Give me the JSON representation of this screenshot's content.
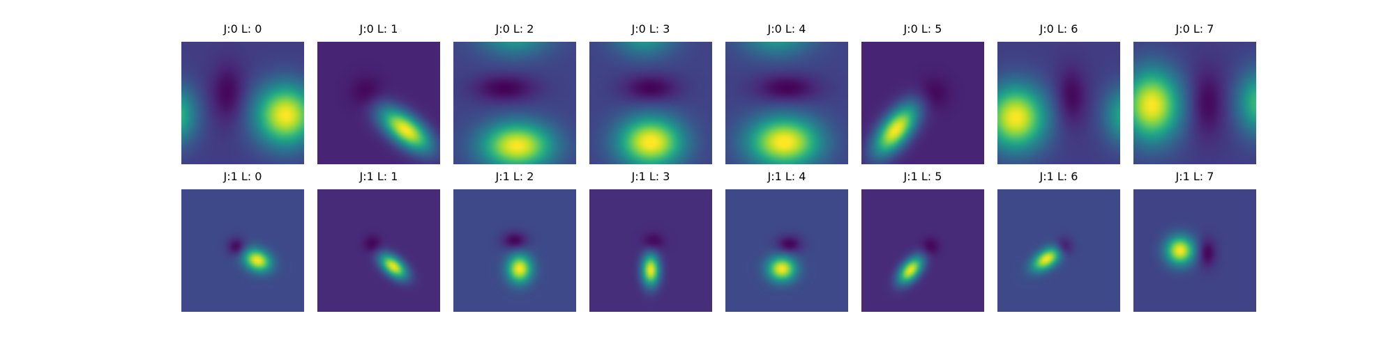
{
  "chart_data": {
    "type": "heatmap",
    "colormap": "viridis",
    "grid": false,
    "axes": "off",
    "rows": [
      {
        "panels": [
          {
            "title": "J:0 L: 0",
            "background": 0.18,
            "blobs": [
              {
                "cx": 0.85,
                "cy": 0.6,
                "sx": 0.17,
                "sy": 0.17,
                "rot": 0,
                "amp": 0.82
              },
              {
                "cx": -0.05,
                "cy": 0.6,
                "sx": 0.12,
                "sy": 0.16,
                "rot": 0,
                "amp": 0.5
              },
              {
                "cx": 0.38,
                "cy": 0.42,
                "sx": 0.1,
                "sy": 0.17,
                "rot": 0,
                "amp": -0.17
              }
            ]
          },
          {
            "title": "J:0 L: 1",
            "background": 0.1,
            "blobs": [
              {
                "cx": 0.72,
                "cy": 0.72,
                "sx": 0.17,
                "sy": 0.08,
                "rot": 38,
                "amp": 0.9
              },
              {
                "cx": 0.4,
                "cy": 0.42,
                "sx": 0.09,
                "sy": 0.09,
                "rot": 0,
                "amp": -0.1
              }
            ]
          },
          {
            "title": "J:0 L: 2",
            "background": 0.2,
            "blobs": [
              {
                "cx": 0.52,
                "cy": 0.85,
                "sx": 0.2,
                "sy": 0.13,
                "rot": 0,
                "amp": 0.8
              },
              {
                "cx": 0.5,
                "cy": -0.08,
                "sx": 0.2,
                "sy": 0.13,
                "rot": 0,
                "amp": 0.4
              },
              {
                "cx": 0.42,
                "cy": 0.38,
                "sx": 0.18,
                "sy": 0.08,
                "rot": 0,
                "amp": -0.2
              }
            ]
          },
          {
            "title": "J:0 L: 3",
            "background": 0.2,
            "blobs": [
              {
                "cx": 0.5,
                "cy": 0.82,
                "sx": 0.18,
                "sy": 0.14,
                "rot": 0,
                "amp": 0.82
              },
              {
                "cx": 0.45,
                "cy": -0.08,
                "sx": 0.17,
                "sy": 0.13,
                "rot": 0,
                "amp": 0.4
              },
              {
                "cx": 0.5,
                "cy": 0.38,
                "sx": 0.16,
                "sy": 0.08,
                "rot": 0,
                "amp": -0.2
              }
            ]
          },
          {
            "title": "J:0 L: 4",
            "background": 0.2,
            "blobs": [
              {
                "cx": 0.48,
                "cy": 0.82,
                "sx": 0.2,
                "sy": 0.14,
                "rot": 0,
                "amp": 0.82
              },
              {
                "cx": 0.42,
                "cy": -0.08,
                "sx": 0.2,
                "sy": 0.13,
                "rot": 0,
                "amp": 0.4
              },
              {
                "cx": 0.5,
                "cy": 0.38,
                "sx": 0.18,
                "sy": 0.08,
                "rot": 0,
                "amp": -0.2
              }
            ]
          },
          {
            "title": "J:0 L: 5",
            "background": 0.1,
            "blobs": [
              {
                "cx": 0.28,
                "cy": 0.72,
                "sx": 0.17,
                "sy": 0.08,
                "rot": -52,
                "amp": 0.9
              },
              {
                "cx": 0.58,
                "cy": 0.42,
                "sx": 0.09,
                "sy": 0.09,
                "rot": 0,
                "amp": -0.1
              }
            ]
          },
          {
            "title": "J:0 L: 6",
            "background": 0.18,
            "blobs": [
              {
                "cx": 0.15,
                "cy": 0.62,
                "sx": 0.17,
                "sy": 0.18,
                "rot": 0,
                "amp": 0.82
              },
              {
                "cx": 1.05,
                "cy": 0.6,
                "sx": 0.12,
                "sy": 0.16,
                "rot": 0,
                "amp": 0.45
              },
              {
                "cx": 0.6,
                "cy": 0.45,
                "sx": 0.09,
                "sy": 0.17,
                "rot": 0,
                "amp": -0.17
              }
            ]
          },
          {
            "title": "J:0 L: 7",
            "background": 0.18,
            "blobs": [
              {
                "cx": 0.15,
                "cy": 0.52,
                "sx": 0.16,
                "sy": 0.2,
                "rot": 0,
                "amp": 0.82
              },
              {
                "cx": 1.02,
                "cy": 0.5,
                "sx": 0.12,
                "sy": 0.18,
                "rot": 0,
                "amp": 0.5
              },
              {
                "cx": 0.6,
                "cy": 0.5,
                "sx": 0.1,
                "sy": 0.2,
                "rot": 0,
                "amp": -0.17
              }
            ]
          }
        ]
      },
      {
        "panels": [
          {
            "title": "J:1 L: 0",
            "background": 0.22,
            "blobs": [
              {
                "cx": 0.62,
                "cy": 0.58,
                "sx": 0.08,
                "sy": 0.06,
                "rot": 25,
                "amp": 0.78
              },
              {
                "cx": 0.45,
                "cy": 0.47,
                "sx": 0.05,
                "sy": 0.05,
                "rot": 0,
                "amp": -0.22
              }
            ]
          },
          {
            "title": "J:1 L: 1",
            "background": 0.12,
            "blobs": [
              {
                "cx": 0.62,
                "cy": 0.63,
                "sx": 0.09,
                "sy": 0.05,
                "rot": 40,
                "amp": 0.86
              },
              {
                "cx": 0.45,
                "cy": 0.45,
                "sx": 0.05,
                "sy": 0.05,
                "rot": 0,
                "amp": -0.12
              }
            ]
          },
          {
            "title": "J:1 L: 2",
            "background": 0.22,
            "blobs": [
              {
                "cx": 0.54,
                "cy": 0.65,
                "sx": 0.07,
                "sy": 0.08,
                "rot": 0,
                "amp": 0.78
              },
              {
                "cx": 0.5,
                "cy": 0.42,
                "sx": 0.07,
                "sy": 0.05,
                "rot": 0,
                "amp": -0.22
              }
            ]
          },
          {
            "title": "J:1 L: 3",
            "background": 0.13,
            "blobs": [
              {
                "cx": 0.5,
                "cy": 0.66,
                "sx": 0.05,
                "sy": 0.09,
                "rot": 0,
                "amp": 0.86
              },
              {
                "cx": 0.52,
                "cy": 0.43,
                "sx": 0.06,
                "sy": 0.05,
                "rot": 0,
                "amp": -0.13
              }
            ]
          },
          {
            "title": "J:1 L: 4",
            "background": 0.22,
            "blobs": [
              {
                "cx": 0.46,
                "cy": 0.65,
                "sx": 0.08,
                "sy": 0.07,
                "rot": 0,
                "amp": 0.78
              },
              {
                "cx": 0.52,
                "cy": 0.45,
                "sx": 0.07,
                "sy": 0.05,
                "rot": 0,
                "amp": -0.22
              }
            ]
          },
          {
            "title": "J:1 L: 5",
            "background": 0.12,
            "blobs": [
              {
                "cx": 0.4,
                "cy": 0.66,
                "sx": 0.09,
                "sy": 0.05,
                "rot": -50,
                "amp": 0.86
              },
              {
                "cx": 0.56,
                "cy": 0.47,
                "sx": 0.05,
                "sy": 0.05,
                "rot": 0,
                "amp": -0.12
              }
            ]
          },
          {
            "title": "J:1 L: 6",
            "background": 0.22,
            "blobs": [
              {
                "cx": 0.4,
                "cy": 0.57,
                "sx": 0.09,
                "sy": 0.05,
                "rot": -35,
                "amp": 0.78
              },
              {
                "cx": 0.54,
                "cy": 0.47,
                "sx": 0.05,
                "sy": 0.05,
                "rot": 0,
                "amp": -0.22
              }
            ]
          },
          {
            "title": "J:1 L: 7",
            "background": 0.2,
            "blobs": [
              {
                "cx": 0.38,
                "cy": 0.5,
                "sx": 0.08,
                "sy": 0.08,
                "rot": 0,
                "amp": 0.8
              },
              {
                "cx": 0.6,
                "cy": 0.52,
                "sx": 0.05,
                "sy": 0.08,
                "rot": 0,
                "amp": -0.2
              }
            ]
          }
        ]
      }
    ]
  }
}
